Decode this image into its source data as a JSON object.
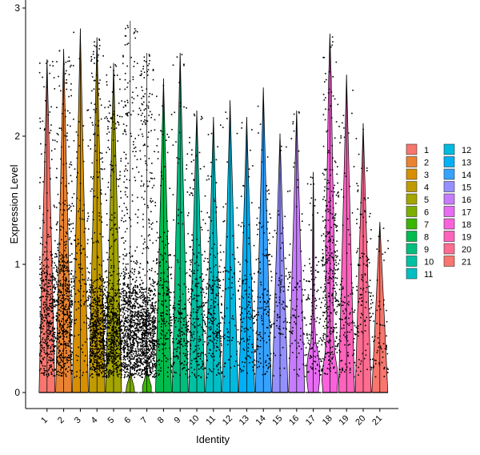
{
  "chart_data": {
    "type": "violin",
    "xlabel": "Identity",
    "ylabel": "Expression Level",
    "ylim": [
      0,
      3
    ],
    "yticks": [
      0,
      1,
      2,
      3
    ],
    "grid": false,
    "legend_position": "right",
    "categories": [
      "1",
      "2",
      "3",
      "4",
      "5",
      "6",
      "7",
      "8",
      "9",
      "10",
      "11",
      "12",
      "13",
      "14",
      "15",
      "16",
      "17",
      "18",
      "19",
      "20",
      "21"
    ],
    "colors": [
      "#F8766D",
      "#EA8331",
      "#D89000",
      "#C09B00",
      "#A3A500",
      "#7CAE00",
      "#39B600",
      "#00BB4E",
      "#00BF7D",
      "#00C1A3",
      "#00BFC4",
      "#00BAE0",
      "#00B0F6",
      "#35A2FF",
      "#9590FF",
      "#C77CFF",
      "#E76BF3",
      "#FA62DB",
      "#FF62BC",
      "#FF6C91",
      "#F8766D"
    ],
    "series": [
      {
        "name": "1",
        "max": 2.6,
        "hi_frac": 0.45,
        "median_nonzero": 0.8,
        "violin": []
      },
      {
        "name": "2",
        "max": 2.68,
        "hi_frac": 0.6,
        "median_nonzero": 0.9,
        "violin": []
      },
      {
        "name": "3",
        "max": 2.84,
        "hi_frac": 0.12,
        "median_nonzero": 1.3,
        "violin": []
      },
      {
        "name": "4",
        "max": 2.77,
        "hi_frac": 0.7,
        "median_nonzero": 0.6,
        "violin": []
      },
      {
        "name": "5",
        "max": 2.57,
        "hi_frac": 0.7,
        "median_nonzero": 0.6,
        "violin": []
      },
      {
        "name": "6",
        "max": 2.9,
        "hi_frac": 0.8,
        "median_nonzero": 0.7,
        "violin": [
          [
            0,
            0.22
          ],
          [
            0.05,
            0.18
          ],
          [
            0.1,
            0.09
          ],
          [
            0.15,
            0.02
          ],
          [
            0.2,
            0
          ]
        ]
      },
      {
        "name": "7",
        "max": 2.65,
        "hi_frac": 0.85,
        "median_nonzero": 0.6,
        "violin": [
          [
            0,
            0.22
          ],
          [
            0.05,
            0.22
          ],
          [
            0.1,
            0.12
          ],
          [
            0.15,
            0.05
          ],
          [
            0.2,
            0
          ]
        ]
      },
      {
        "name": "8",
        "max": 2.45,
        "hi_frac": 0.2,
        "median_nonzero": 0.9,
        "violin": []
      },
      {
        "name": "9",
        "max": 2.65,
        "hi_frac": 0.18,
        "median_nonzero": 0.6,
        "violin": []
      },
      {
        "name": "10",
        "max": 2.2,
        "hi_frac": 0.2,
        "median_nonzero": 0.8,
        "violin": []
      },
      {
        "name": "11",
        "max": 2.15,
        "hi_frac": 0.2,
        "median_nonzero": 0.8,
        "violin": []
      },
      {
        "name": "12",
        "max": 2.28,
        "hi_frac": 0.04,
        "median_nonzero": 1.0,
        "violin": []
      },
      {
        "name": "13",
        "max": 2.15,
        "hi_frac": 0.1,
        "median_nonzero": 0.8,
        "violin": []
      },
      {
        "name": "14",
        "max": 2.38,
        "hi_frac": 0.12,
        "median_nonzero": 1.0,
        "violin": []
      },
      {
        "name": "15",
        "max": 2.02,
        "hi_frac": 0.05,
        "median_nonzero": 0.9,
        "violin": []
      },
      {
        "name": "16",
        "max": 2.2,
        "hi_frac": 0.06,
        "median_nonzero": 0.7,
        "violin": []
      },
      {
        "name": "17",
        "max": 1.72,
        "hi_frac": 0.1,
        "median_nonzero": 0.8,
        "violin": [
          [
            0,
            0.25
          ],
          [
            0.1,
            0.32
          ],
          [
            0.2,
            0.33
          ],
          [
            0.3,
            0.25
          ],
          [
            0.4,
            0.12
          ],
          [
            0.6,
            0.06
          ],
          [
            0.8,
            0.05
          ],
          [
            1.0,
            0.045
          ],
          [
            1.2,
            0.035
          ],
          [
            1.4,
            0.025
          ],
          [
            1.6,
            0.01
          ],
          [
            1.72,
            0
          ]
        ]
      },
      {
        "name": "18",
        "max": 2.8,
        "hi_frac": 0.35,
        "median_nonzero": 1.3,
        "violin": [
          [
            0,
            0.35
          ],
          [
            0.1,
            0.4
          ],
          [
            0.2,
            0.35
          ],
          [
            0.3,
            0.25
          ],
          [
            0.5,
            0.15
          ],
          [
            0.7,
            0.16
          ],
          [
            0.9,
            0.2
          ],
          [
            1.1,
            0.22
          ],
          [
            1.3,
            0.2
          ],
          [
            1.5,
            0.17
          ],
          [
            1.7,
            0.14
          ],
          [
            1.9,
            0.12
          ],
          [
            2.1,
            0.1
          ],
          [
            2.3,
            0.08
          ],
          [
            2.45,
            0.07
          ],
          [
            2.55,
            0.045
          ],
          [
            2.7,
            0.02
          ],
          [
            2.8,
            0
          ]
        ]
      },
      {
        "name": "19",
        "max": 2.48,
        "hi_frac": 0.1,
        "median_nonzero": 0.7,
        "violin": []
      },
      {
        "name": "20",
        "max": 2.1,
        "hi_frac": 0.1,
        "median_nonzero": 1.2,
        "violin": []
      },
      {
        "name": "21",
        "max": 1.33,
        "hi_frac": 0.03,
        "median_nonzero": 0.5,
        "violin": []
      }
    ]
  }
}
